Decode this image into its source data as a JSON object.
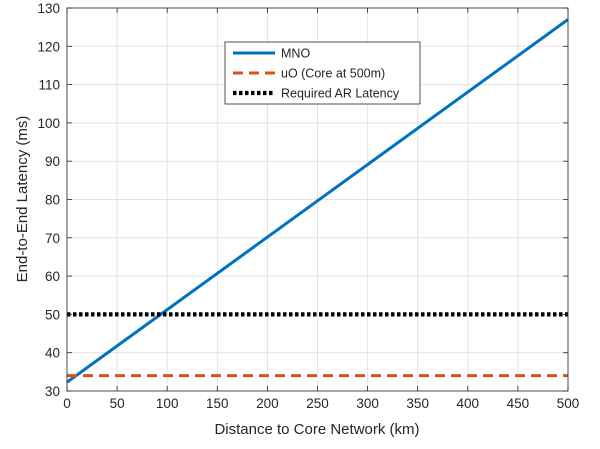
{
  "chart_data": {
    "type": "line",
    "xlabel": "Distance to Core Network (km)",
    "ylabel": "End-to-End Latency (ms)",
    "xlim": [
      0,
      500
    ],
    "ylim": [
      30,
      130
    ],
    "xticks": [
      0,
      50,
      100,
      150,
      200,
      250,
      300,
      350,
      400,
      450,
      500
    ],
    "yticks": [
      30,
      40,
      50,
      60,
      70,
      80,
      90,
      100,
      110,
      120,
      130
    ],
    "grid": true,
    "legend_position": "top-center",
    "series": [
      {
        "name": "MNO",
        "x": [
          0,
          500
        ],
        "y": [
          32.3,
          127
        ],
        "color": "#0072BD",
        "style": "solid"
      },
      {
        "name": "uO (Core at 500m)",
        "x": [
          0,
          500
        ],
        "y": [
          34,
          34
        ],
        "color": "#D95319",
        "style": "dashed"
      },
      {
        "name": "Required AR Latency",
        "x": [
          0,
          500
        ],
        "y": [
          50,
          50
        ],
        "color": "#000000",
        "style": "dotted"
      }
    ]
  }
}
